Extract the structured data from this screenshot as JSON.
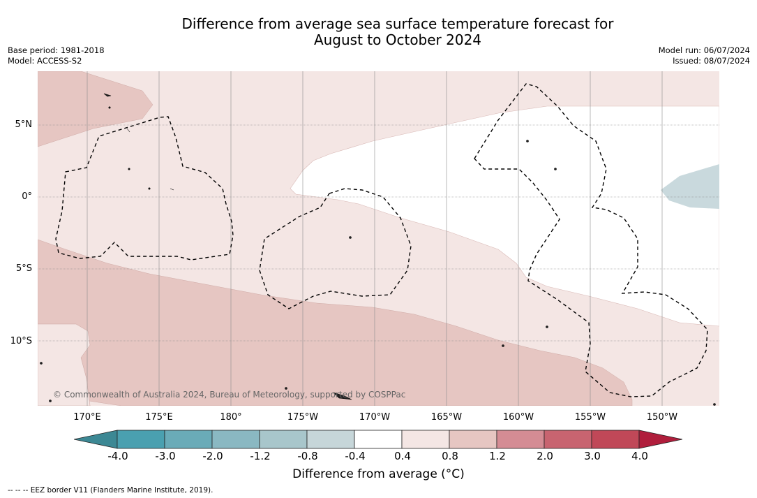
{
  "title_line1": "Difference from average sea surface temperature forecast for",
  "title_line2": "August to October 2024",
  "base_period": "Base period: 1981-2018",
  "model": "Model: ACCESS-S2",
  "model_run": "Model run: 06/07/2024",
  "issued": "Issued: 08/07/2024",
  "lat_labels": [
    "5°N",
    "0°",
    "5°S",
    "10°S"
  ],
  "lon_labels": [
    "170°E",
    "175°E",
    "180°",
    "175°W",
    "170°W",
    "165°W",
    "160°W",
    "155°W",
    "150°W"
  ],
  "copyright": "© Commonwealth of Australia 2024, Bureau of Meteorology, supported by COSPPac",
  "colorbar": {
    "ticks": [
      "-4.0",
      "-3.0",
      "-2.0",
      "-1.2",
      "-0.8",
      "-0.4",
      "0.4",
      "0.8",
      "1.2",
      "2.0",
      "3.0",
      "4.0"
    ],
    "colors": [
      "#4aa0b0",
      "#6aabb8",
      "#8ab8c2",
      "#a8c6cb",
      "#c6d6d9",
      "#ffffff",
      "#f4e6e4",
      "#e6c6c2",
      "#d48c94",
      "#c86470",
      "#c04858"
    ],
    "under_color": "#3c8894",
    "over_color": "#b01e3c",
    "label": "Difference from average (°C)"
  },
  "legend_note": "-- -- -- EEZ border V11 (Flanders Marine Institute, 2019).",
  "fill_colors": {
    "light_warm": "#f4e6e4",
    "warm": "#e6c6c2",
    "cool": "#c9d9dd",
    "neutral": "#ffffff"
  }
}
